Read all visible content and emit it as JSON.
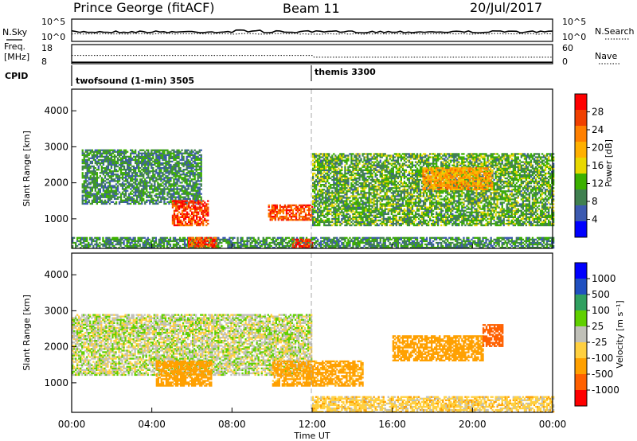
{
  "header": {
    "station": "Prince George (fitACF)",
    "beam": "Beam 11",
    "date": "20/Jul/2017"
  },
  "noise_panel": {
    "left_label": "N.Sky",
    "left_ticks": [
      "10^5",
      "10^0"
    ],
    "right_label": "N.Search",
    "right_ticks": [
      "10^5",
      "10^0"
    ]
  },
  "freq_panel": {
    "left_label_1": "Freq.",
    "left_label_2": "[MHz]",
    "left_ticks": [
      "18",
      "8"
    ],
    "right_label": "Nave",
    "right_ticks": [
      "60",
      "0"
    ]
  },
  "cpid_panel": {
    "label": "CPID",
    "programs": [
      {
        "name": "twofsound (1-min)",
        "id": "3505"
      },
      {
        "name": "themis",
        "id": "3300"
      }
    ]
  },
  "power_panel": {
    "ylabel": "Slant Range [km]",
    "colorbar_label": "Power [dB]",
    "colorbar_ticks": [
      "28",
      "24",
      "20",
      "16",
      "12",
      "8",
      "4"
    ],
    "colorbar_colors": [
      "#ff0000",
      "#f04000",
      "#ff8000",
      "#ffb000",
      "#e8d800",
      "#3cb000",
      "#408050",
      "#3c5ab0",
      "#0000ff"
    ]
  },
  "velocity_panel": {
    "ylabel": "Slant Range [km]",
    "colorbar_label": "Velocity [m s⁻¹]",
    "colorbar_ticks": [
      "1000",
      "500",
      "100",
      "25",
      "-25",
      "-100",
      "-500",
      "-1000"
    ],
    "colorbar_colors": [
      "#0000ff",
      "#2050c0",
      "#30a060",
      "#60d000",
      "#c0c0b8",
      "#ffd040",
      "#ffa000",
      "#ff6000",
      "#ff0000"
    ]
  },
  "time_axis": {
    "label": "Time UT",
    "ticks": [
      "00:00",
      "04:00",
      "08:00",
      "12:00",
      "16:00",
      "20:00",
      "00:00"
    ]
  },
  "chart_data": [
    {
      "type": "line",
      "panel": "noise",
      "series": [
        {
          "name": "N.Sky",
          "style": "solid"
        },
        {
          "name": "N.Search",
          "style": "dotted"
        }
      ],
      "scale": "log",
      "ylim": [
        "10^0",
        "10^5"
      ],
      "xlim_hours": [
        0,
        24
      ]
    },
    {
      "type": "line",
      "panel": "frequency",
      "series": [
        {
          "name": "Freq.",
          "style": "solid",
          "approx_values_mhz": [
            8.5,
            8.5
          ]
        },
        {
          "name": "Nave",
          "style": "dotted",
          "approx_values": [
            33,
            33,
            25,
            25
          ]
        }
      ],
      "ylim_left": [
        8,
        18
      ],
      "ylim_right": [
        0,
        60
      ],
      "xlim_hours": [
        0,
        24
      ]
    },
    {
      "type": "heatmap",
      "panel": "power",
      "quantity": "Power [dB]",
      "x_label": "Time UT",
      "y_label": "Slant Range [km]",
      "xlim_hours": [
        0,
        24
      ],
      "ylim_km": [
        180,
        4600
      ],
      "y_ticks": [
        1000,
        2000,
        3000,
        4000
      ],
      "color_range": [
        0,
        30
      ],
      "program_change_hour": 12,
      "echo_regions": [
        {
          "t_start": 0.0,
          "t_end": 24.0,
          "r_min": 180,
          "r_max": 480,
          "typical_db": 8
        },
        {
          "t_start": 0.5,
          "t_end": 6.5,
          "r_min": 1400,
          "r_max": 2900,
          "typical_db": 8
        },
        {
          "t_start": 5.0,
          "t_end": 6.8,
          "r_min": 800,
          "r_max": 1500,
          "typical_db": 27
        },
        {
          "t_start": 5.8,
          "t_end": 7.2,
          "r_min": 180,
          "r_max": 480,
          "typical_db": 26
        },
        {
          "t_start": 9.8,
          "t_end": 12.0,
          "r_min": 950,
          "r_max": 1400,
          "typical_db": 26
        },
        {
          "t_start": 11.0,
          "t_end": 12.0,
          "r_min": 180,
          "r_max": 450,
          "typical_db": 28
        },
        {
          "t_start": 12.0,
          "t_end": 24.0,
          "r_min": 800,
          "r_max": 2800,
          "typical_db": 10
        },
        {
          "t_start": 17.5,
          "t_end": 21.0,
          "r_min": 1800,
          "r_max": 2400,
          "typical_db": 20
        }
      ]
    },
    {
      "type": "heatmap",
      "panel": "velocity",
      "quantity": "Velocity [m s⁻¹]",
      "x_label": "Time UT",
      "y_label": "Slant Range [km]",
      "xlim_hours": [
        0,
        24
      ],
      "ylim_km": [
        180,
        4600
      ],
      "y_ticks": [
        1000,
        2000,
        3000,
        4000
      ],
      "color_levels": [
        -1000,
        -500,
        -100,
        -25,
        25,
        100,
        500,
        1000
      ],
      "program_change_hour": 12,
      "echo_regions": [
        {
          "t_start": 0.0,
          "t_end": 12.0,
          "r_min": 1200,
          "r_max": 2900,
          "typical_ms": 0
        },
        {
          "t_start": 4.2,
          "t_end": 7.0,
          "r_min": 900,
          "r_max": 1600,
          "typical_ms": -250
        },
        {
          "t_start": 10.0,
          "t_end": 14.5,
          "r_min": 900,
          "r_max": 1600,
          "typical_ms": -150
        },
        {
          "t_start": 12.0,
          "t_end": 24.0,
          "r_min": 180,
          "r_max": 600,
          "typical_ms": -60
        },
        {
          "t_start": 16.0,
          "t_end": 20.5,
          "r_min": 1600,
          "r_max": 2300,
          "typical_ms": -300
        },
        {
          "t_start": 20.5,
          "t_end": 21.5,
          "r_min": 2000,
          "r_max": 2600,
          "typical_ms": -800
        }
      ]
    }
  ]
}
